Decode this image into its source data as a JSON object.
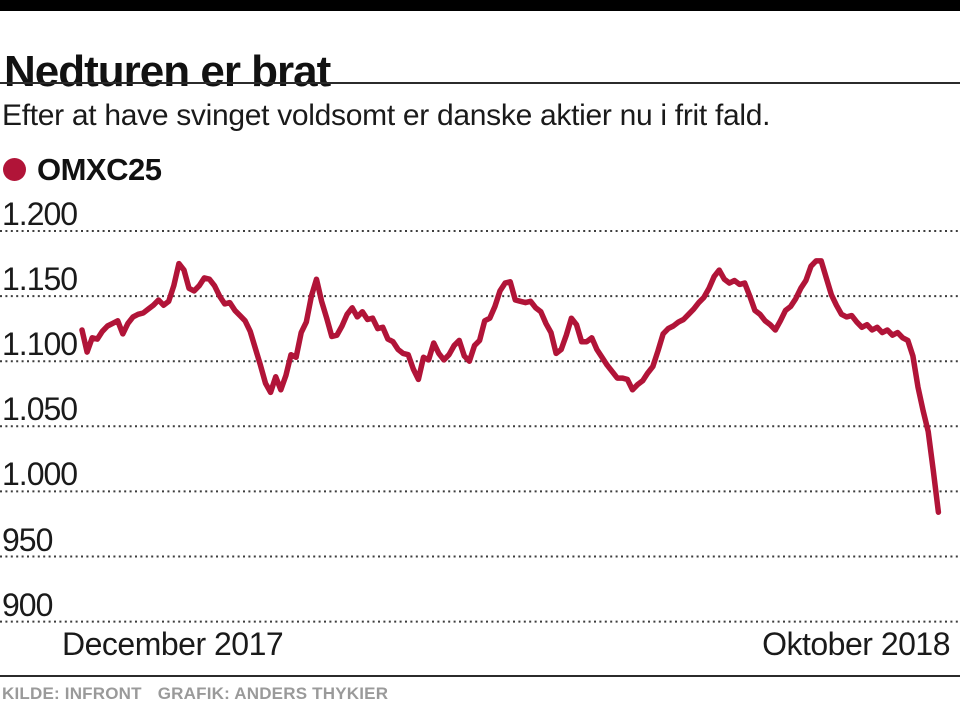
{
  "header": {
    "title": "Nedturen er brat",
    "subtitle": "Efter at have svinget voldsomt er danske aktier nu i frit fald."
  },
  "legend": {
    "label": "OMXC25",
    "color": "#b11438"
  },
  "footer": {
    "source": "KILDE: INFRONT",
    "credit": "GRAFIK: ANDERS THYKIER"
  },
  "colors": {
    "accent": "#b11438",
    "top_bar": "#000000",
    "rule": "#2b2b2b",
    "grid_dots": "#3d3d3d",
    "footer_text": "#9a9a9a"
  },
  "chart_data": {
    "type": "line",
    "title": "OMXC25",
    "xlabel": "",
    "ylabel": "",
    "grid": "horizontal-dotted",
    "legend_position": "top-left",
    "x_axis": {
      "start_label": "December 2017",
      "end_label": "Oktober 2018"
    },
    "y_axis": {
      "ticks": [
        1200,
        1150,
        1100,
        1050,
        1000,
        950,
        900
      ],
      "tick_labels": [
        "1.200",
        "1.150",
        "1.100",
        "1.050",
        "1.000",
        "950",
        "900"
      ],
      "range": [
        900,
        1200
      ]
    },
    "series": [
      {
        "name": "OMXC25",
        "color": "#b11438",
        "values": [
          1124,
          1107,
          1118,
          1117,
          1123,
          1127,
          1129,
          1131,
          1121,
          1129,
          1134,
          1136,
          1137,
          1140,
          1143,
          1147,
          1143,
          1146,
          1158,
          1175,
          1170,
          1156,
          1154,
          1158,
          1164,
          1163,
          1158,
          1150,
          1144,
          1145,
          1139,
          1135,
          1131,
          1123,
          1110,
          1097,
          1083,
          1076,
          1088,
          1078,
          1089,
          1105,
          1103,
          1122,
          1130,
          1150,
          1163,
          1146,
          1133,
          1119,
          1120,
          1127,
          1136,
          1141,
          1134,
          1138,
          1132,
          1133,
          1125,
          1126,
          1117,
          1115,
          1109,
          1106,
          1105,
          1094,
          1086,
          1103,
          1101,
          1114,
          1106,
          1101,
          1105,
          1112,
          1116,
          1104,
          1100,
          1112,
          1116,
          1131,
          1133,
          1142,
          1154,
          1160,
          1161,
          1147,
          1146,
          1145,
          1146,
          1141,
          1138,
          1129,
          1122,
          1106,
          1109,
          1120,
          1133,
          1128,
          1115,
          1115,
          1118,
          1109,
          1103,
          1097,
          1092,
          1087,
          1087,
          1086,
          1078,
          1082,
          1085,
          1091,
          1096,
          1108,
          1121,
          1125,
          1127,
          1130,
          1132,
          1136,
          1140,
          1145,
          1149,
          1156,
          1165,
          1170,
          1163,
          1160,
          1162,
          1159,
          1160,
          1150,
          1139,
          1136,
          1131,
          1128,
          1124,
          1131,
          1139,
          1142,
          1148,
          1156,
          1162,
          1173,
          1177,
          1177,
          1164,
          1151,
          1143,
          1136,
          1134,
          1135,
          1130,
          1126,
          1128,
          1124,
          1126,
          1122,
          1124,
          1120,
          1122,
          1118,
          1116,
          1104,
          1080,
          1062,
          1046,
          1016,
          984
        ]
      }
    ]
  }
}
